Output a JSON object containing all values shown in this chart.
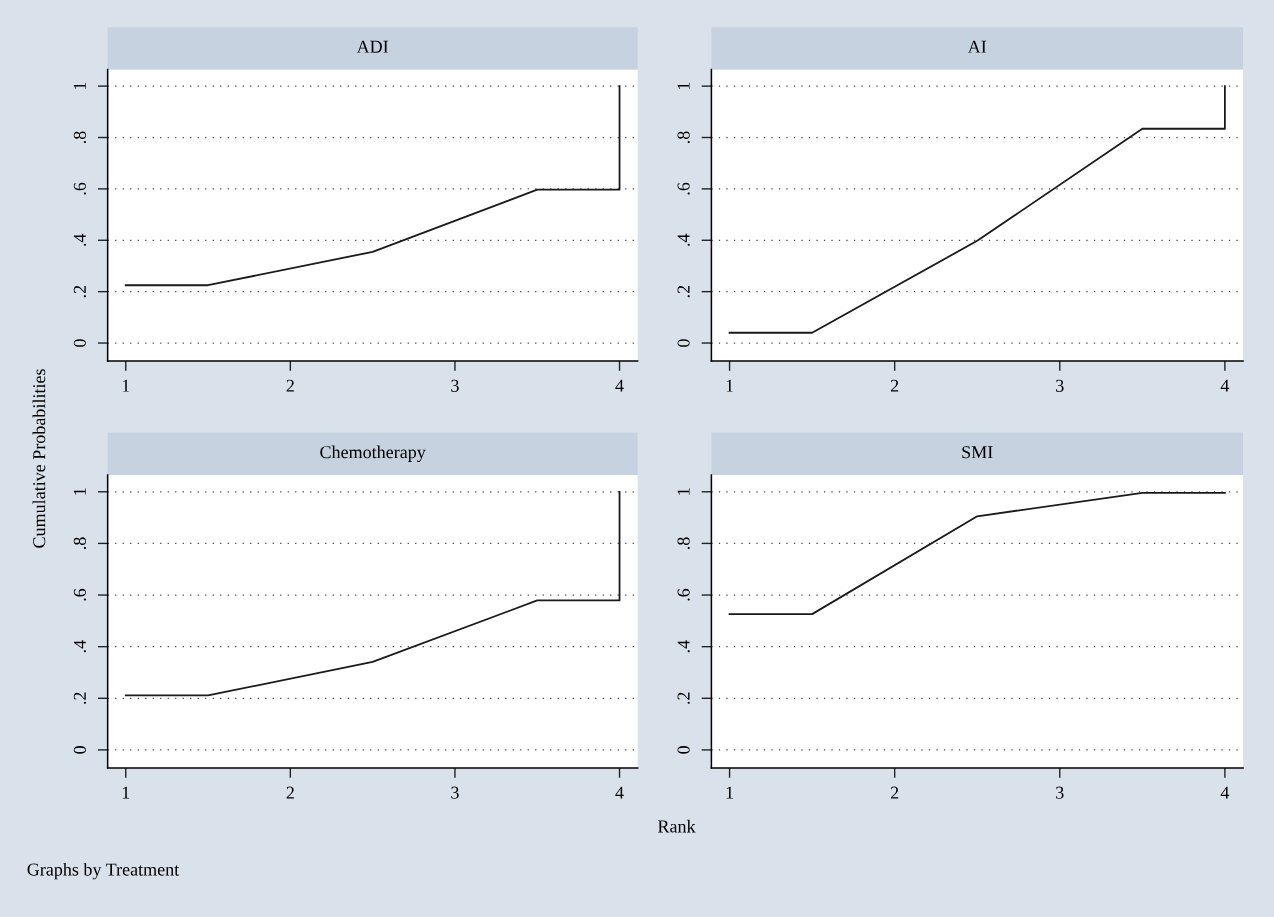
{
  "chart_data": [
    {
      "type": "line",
      "title": "ADI",
      "ylabel": "Cumulative Probabilities",
      "xlim": [
        0.89,
        4.11
      ],
      "xticks": [
        1,
        2,
        3,
        4
      ],
      "ylim": [
        -0.07,
        1.065
      ],
      "yticks": [
        {
          "value": 0,
          "label": "0"
        },
        {
          "value": 0.2,
          "label": ".2"
        },
        {
          "value": 0.4,
          "label": ".4"
        },
        {
          "value": 0.6,
          "label": ".6"
        },
        {
          "value": 0.8,
          "label": ".8"
        },
        {
          "value": 1,
          "label": "1"
        }
      ],
      "grid": "y",
      "line_style": "solid",
      "series": [
        {
          "color": "#1a1a1a",
          "x": [
            1,
            1.5,
            2.5,
            3.5,
            4,
            4
          ],
          "values": [
            0.225,
            0.225,
            0.355,
            0.597,
            0.597,
            1
          ]
        }
      ]
    },
    {
      "type": "line",
      "title": "AI",
      "xlim": [
        0.89,
        4.11
      ],
      "xticks": [
        1,
        2,
        3,
        4
      ],
      "ylim": [
        -0.07,
        1.065
      ],
      "yticks": [
        {
          "value": 0,
          "label": "0"
        },
        {
          "value": 0.2,
          "label": ".2"
        },
        {
          "value": 0.4,
          "label": ".4"
        },
        {
          "value": 0.6,
          "label": ".6"
        },
        {
          "value": 0.8,
          "label": ".8"
        },
        {
          "value": 1,
          "label": "1"
        }
      ],
      "grid": "y",
      "line_style": "solid",
      "series": [
        {
          "color": "#1a1a1a",
          "x": [
            1,
            1.5,
            2.5,
            3.5,
            4,
            4
          ],
          "values": [
            0.04,
            0.04,
            0.398,
            0.834,
            0.834,
            1
          ]
        }
      ]
    },
    {
      "type": "line",
      "title": "Chemotherapy",
      "xlabel": "Rank",
      "xlim": [
        0.89,
        4.11
      ],
      "xticks": [
        1,
        2,
        3,
        4
      ],
      "ylim": [
        -0.07,
        1.065
      ],
      "yticks": [
        {
          "value": 0,
          "label": "0"
        },
        {
          "value": 0.2,
          "label": ".2"
        },
        {
          "value": 0.4,
          "label": ".4"
        },
        {
          "value": 0.6,
          "label": ".6"
        },
        {
          "value": 0.8,
          "label": ".8"
        },
        {
          "value": 1,
          "label": "1"
        }
      ],
      "grid": "y",
      "line_style": "solid",
      "series": [
        {
          "color": "#1a1a1a",
          "x": [
            1,
            1.5,
            2.5,
            3.5,
            4,
            4
          ],
          "values": [
            0.211,
            0.211,
            0.341,
            0.579,
            0.579,
            1
          ]
        }
      ],
      "annotations": [
        "Graphs by Treatment"
      ]
    },
    {
      "type": "line",
      "title": "SMI",
      "xlim": [
        0.89,
        4.11
      ],
      "xticks": [
        1,
        2,
        3,
        4
      ],
      "ylim": [
        -0.07,
        1.065
      ],
      "yticks": [
        {
          "value": 0,
          "label": "0"
        },
        {
          "value": 0.2,
          "label": ".2"
        },
        {
          "value": 0.4,
          "label": ".4"
        },
        {
          "value": 0.6,
          "label": ".6"
        },
        {
          "value": 0.8,
          "label": ".8"
        },
        {
          "value": 1,
          "label": "1"
        }
      ],
      "grid": "y",
      "line_style": "solid",
      "series": [
        {
          "color": "#1a1a1a",
          "x": [
            1,
            1.5,
            2.5,
            3.5,
            4
          ],
          "values": [
            0.526,
            0.526,
            0.905,
            0.996,
            0.996
          ]
        }
      ]
    }
  ]
}
